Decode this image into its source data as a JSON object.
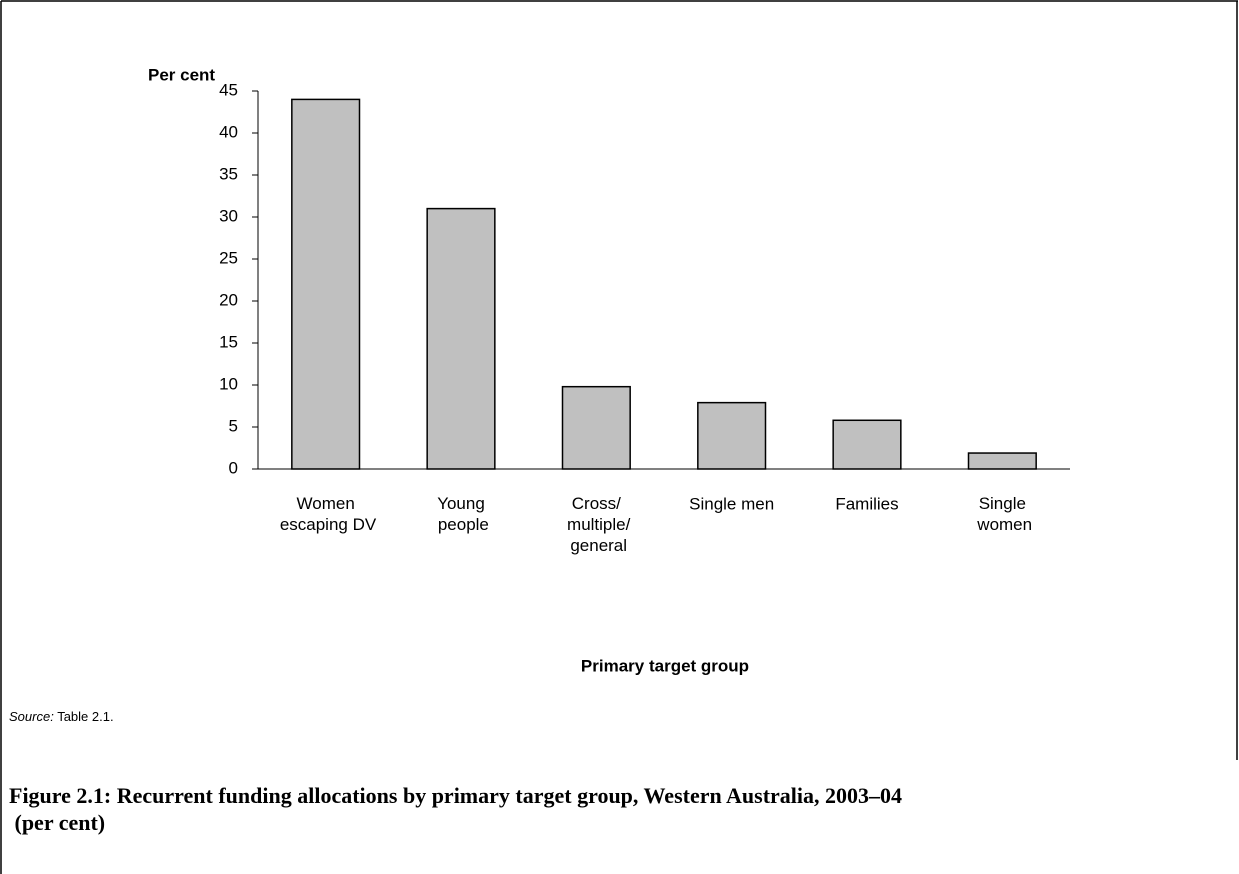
{
  "chart_data": {
    "type": "bar",
    "title": "Figure 2.1: Recurrent funding allocations by primary target group, Western Australia, 2003–04\n(per cent)",
    "y_label": "Per cent",
    "x_label": "Primary target group",
    "source_label": "Source:",
    "source": "Table 2.1.",
    "categories": [
      "Women\nescaping DV",
      "Young\npeople",
      "Cross/\nmultiple/\ngeneral",
      "Single men",
      "Families",
      "Single\nwomen"
    ],
    "values": [
      44,
      31,
      9.8,
      7.9,
      5.8,
      1.9
    ],
    "color": "#c0c0c0",
    "ylim": [
      0,
      45
    ],
    "yticks": [
      0,
      5,
      10,
      15,
      20,
      25,
      30,
      35,
      40,
      45
    ],
    "grid": false
  }
}
